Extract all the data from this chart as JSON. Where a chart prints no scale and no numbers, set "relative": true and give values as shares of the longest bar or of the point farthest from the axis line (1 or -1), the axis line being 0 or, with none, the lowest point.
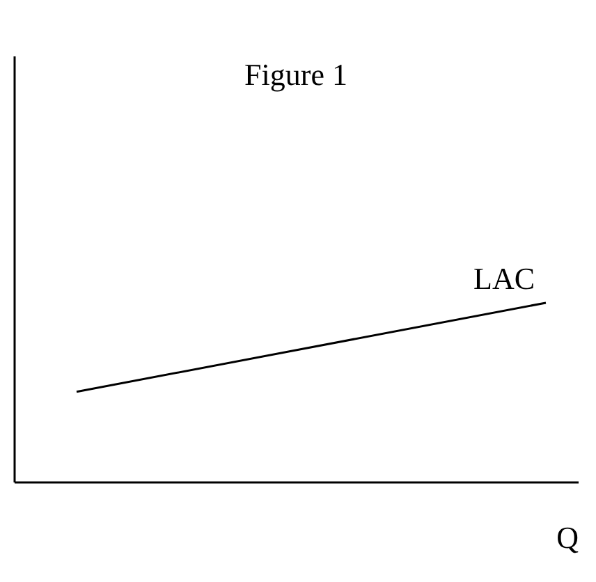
{
  "chart_data": {
    "type": "line",
    "title": "Figure 1",
    "xlabel": "Q",
    "categories": [
      null,
      null
    ],
    "relative": true,
    "series": [
      {
        "name": "LAC",
        "color": "#000000",
        "values": [
          0.503,
          1
        ]
      }
    ],
    "grid": false,
    "marker": "none",
    "line_style": "solid",
    "tick_labels": false
  }
}
